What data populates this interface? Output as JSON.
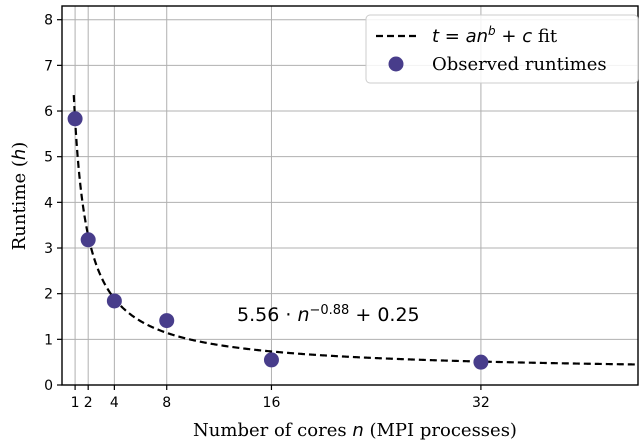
{
  "chart_data": {
    "type": "scatter",
    "xlabel": "Number of cores n (MPI processes)",
    "ylabel": "Runtime (h)",
    "xlim": [
      0,
      44
    ],
    "ylim": [
      0,
      8.3
    ],
    "xticks": [
      1,
      2,
      4,
      8,
      16,
      32
    ],
    "xtick_labels": [
      "1",
      "2",
      "4",
      "8",
      "16",
      "32"
    ],
    "yticks": [
      0,
      1,
      2,
      3,
      4,
      5,
      6,
      7,
      8
    ],
    "ytick_labels": [
      "0",
      "1",
      "2",
      "3",
      "4",
      "5",
      "6",
      "7",
      "8"
    ],
    "grid": true,
    "legend_position": "top-right",
    "colors": {
      "points": "#483d8b",
      "fit": "#000000",
      "grid": "#b0b0b0"
    },
    "fit": {
      "name": "t = an^b + c fit",
      "a": 5.56,
      "b": -0.88,
      "c": 0.25,
      "style": "dashed"
    },
    "series": [
      {
        "name": "Observed runtimes",
        "x": [
          1,
          2,
          4,
          8,
          16,
          32
        ],
        "y": [
          5.83,
          3.18,
          1.84,
          1.41,
          0.55,
          0.5
        ]
      }
    ],
    "annotation": "5.56 · n^−0.88 + 0.25"
  }
}
